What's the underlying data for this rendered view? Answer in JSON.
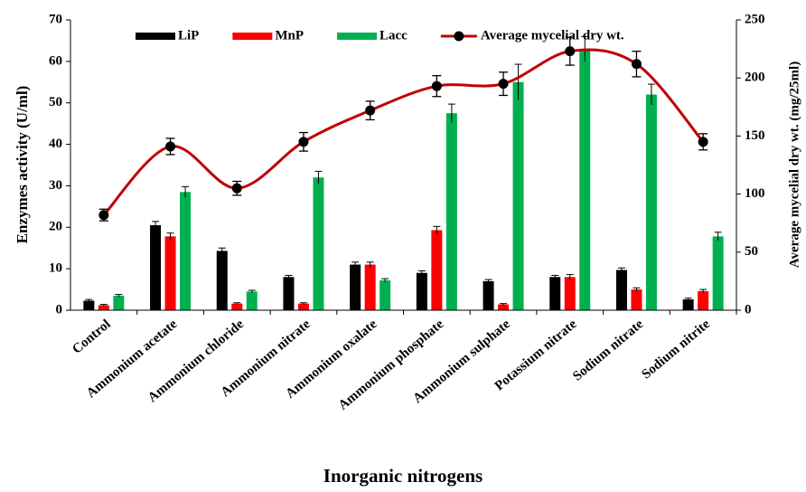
{
  "chart_data": {
    "type": "bar_line",
    "categories": [
      "Control",
      "Ammonium acetate",
      "Ammonium chloride",
      "Ammonium nitrate",
      "Ammonium oxalate",
      "Ammonium phosphate",
      "Ammonium sulphate",
      "Potassium nitrate",
      "Sodium nitrate",
      "Sodium nitrite"
    ],
    "series": [
      {
        "name": "LiP",
        "color": "#000000",
        "values": [
          2.3,
          20.5,
          14.3,
          8,
          11,
          9,
          7,
          8,
          9.7,
          2.6
        ],
        "error": [
          0.3,
          0.9,
          0.7,
          0.4,
          0.6,
          0.5,
          0.4,
          0.4,
          0.5,
          0.3
        ]
      },
      {
        "name": "MnP",
        "color": "#ff0000",
        "values": [
          1.2,
          17.8,
          1.6,
          1.6,
          11,
          19.3,
          1.4,
          8,
          5,
          4.6
        ],
        "error": [
          0.2,
          0.8,
          0.2,
          0.2,
          0.6,
          0.9,
          0.2,
          0.6,
          0.4,
          0.4
        ]
      },
      {
        "name": "Lacc",
        "color": "#00b050",
        "values": [
          3.5,
          28.5,
          4.5,
          32,
          7.2,
          47.5,
          55,
          63,
          52,
          17.8
        ],
        "error": [
          0.3,
          1.3,
          0.3,
          1.5,
          0.4,
          2.2,
          4.3,
          3,
          2.5,
          1
        ]
      },
      {
        "name": "Average mycelial dry wt.",
        "color": "#c00000",
        "axis": "y2",
        "values": [
          82,
          141,
          105,
          145,
          172,
          193,
          195,
          223,
          212,
          145
        ],
        "error": [
          5,
          7,
          6,
          8,
          8,
          9,
          10,
          12,
          11,
          7
        ]
      }
    ],
    "ylabel": "Enzymes activity (U/ml)",
    "y2label": "Average mycelial dry wt. (mg/25ml)",
    "xlabel": "Inorganic nitrogens",
    "ylim": [
      0,
      70
    ],
    "yticks": [
      0,
      10,
      20,
      30,
      40,
      50,
      60,
      70
    ],
    "y2lim": [
      0,
      250
    ],
    "y2ticks": [
      0,
      50,
      100,
      150,
      200,
      250
    ]
  }
}
